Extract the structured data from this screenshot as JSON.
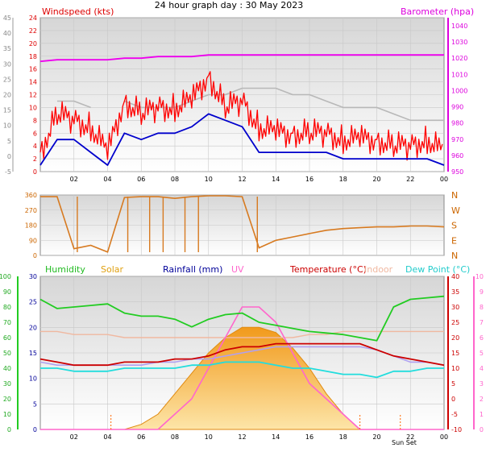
{
  "title": "24 hour graph day : 30 May 2023",
  "time_labels": [
    "02",
    "04",
    "06",
    "08",
    "10",
    "12",
    "14",
    "16",
    "18",
    "20",
    "22",
    "00"
  ],
  "sun_label": "Sun Set",
  "colors": {
    "wind_speed": "#ff0000",
    "wind_gust_avg": "#0000cc",
    "wind_gray": "#b8b8b8",
    "barometer": "#ee00ee",
    "wind_dir": "#d77a20",
    "humidity": "#22cc22",
    "solar": "#f6a623",
    "rain": "#000099",
    "uv": "#ff66cc",
    "temperature": "#cc0000",
    "indoor": "#f0b8a0",
    "dewpoint": "#22dddd",
    "dewpoint_lilac": "#b0a0f0"
  },
  "chart_data": [
    {
      "type": "line",
      "panel": "wind_pressure",
      "left_axis_title": "Windspeed (kts)",
      "right_axis_title": "Barometer (hpa)",
      "left_ticks": [
        "24",
        "22",
        "20",
        "18",
        "16",
        "14",
        "12",
        "10",
        "8",
        "6",
        "4",
        "2",
        "0"
      ],
      "right_ticks": [
        "1040",
        "1030",
        "1020",
        "1010",
        "1000",
        "990",
        "980",
        "970",
        "960",
        "950"
      ],
      "outer_left_ticks": [
        "45",
        "40",
        "35",
        "30",
        "25",
        "20",
        "15",
        "10",
        "5",
        "0",
        "-5"
      ],
      "x_hours": [
        0,
        1,
        2,
        3,
        4,
        5,
        6,
        7,
        8,
        9,
        10,
        11,
        12,
        13,
        14,
        15,
        16,
        17,
        18,
        19,
        20,
        21,
        22,
        23,
        24
      ],
      "series": [
        {
          "key": "wind_speed",
          "values": [
            3,
            9,
            8,
            7,
            3,
            11,
            9,
            10,
            10,
            11,
            15,
            10,
            11,
            7,
            6,
            6,
            6,
            6,
            5,
            5,
            5,
            4,
            4,
            5,
            3
          ]
        },
        {
          "key": "wind_avg",
          "values": [
            1,
            5,
            5,
            3,
            1,
            6,
            5,
            6,
            6,
            7,
            9,
            8,
            7,
            3,
            3,
            3,
            3,
            3,
            2,
            2,
            2,
            2,
            2,
            2,
            1
          ]
        },
        {
          "key": "wind_gray",
          "values": [
            null,
            11,
            11,
            10,
            null,
            11,
            10,
            10,
            10,
            11,
            12,
            12,
            13,
            13,
            13,
            12,
            12,
            11,
            10,
            10,
            10,
            9,
            8,
            8,
            8
          ]
        },
        {
          "key": "barometer",
          "values": [
            1018,
            1019,
            1019,
            1019,
            1019,
            1020,
            1020,
            1021,
            1021,
            1021,
            1022,
            1022,
            1022,
            1022,
            1022,
            1022,
            1022,
            1022,
            1022,
            1022,
            1022,
            1022,
            1022,
            1022,
            1022
          ]
        }
      ]
    },
    {
      "type": "line",
      "panel": "wind_direction",
      "left_ticks": [
        "360",
        "270",
        "180",
        "90",
        "0"
      ],
      "right_ticks": [
        "N",
        "W",
        "S",
        "E",
        "N"
      ],
      "x_hours": [
        0,
        1,
        2,
        3,
        4,
        5,
        6,
        7,
        8,
        9,
        10,
        11,
        12,
        13,
        14,
        15,
        16,
        17,
        18,
        19,
        20,
        21,
        22,
        23,
        24
      ],
      "series": [
        {
          "key": "wind_dir",
          "values": [
            350,
            350,
            40,
            60,
            20,
            345,
            350,
            350,
            340,
            350,
            355,
            355,
            350,
            45,
            90,
            110,
            130,
            150,
            160,
            165,
            170,
            170,
            175,
            175,
            170
          ]
        }
      ]
    },
    {
      "type": "mixed",
      "panel": "environment",
      "legend": [
        "Humidity",
        "Solar",
        "Rainfall (mm)",
        "UV",
        "Temperature (°C)",
        "Indoor",
        "Dew Point (°C)"
      ],
      "outer_left_ticks": [
        "100",
        "90",
        "80",
        "70",
        "60",
        "50",
        "40",
        "30",
        "20",
        "10",
        "0"
      ],
      "left_ticks": [
        "30",
        "25",
        "20",
        "15",
        "10",
        "5",
        "0"
      ],
      "right_ticks": [
        "40",
        "35",
        "30",
        "25",
        "20",
        "15",
        "10",
        "5",
        "0",
        "-5",
        "-10"
      ],
      "outer_right_ticks": [
        "10",
        "9",
        "8",
        "7",
        "6",
        "5",
        "4",
        "3",
        "2",
        "1",
        "0"
      ],
      "x_hours": [
        0,
        1,
        2,
        3,
        4,
        5,
        6,
        7,
        8,
        9,
        10,
        11,
        12,
        13,
        14,
        15,
        16,
        17,
        18,
        19,
        20,
        21,
        22,
        23,
        24
      ],
      "series": [
        {
          "key": "humidity",
          "unit": "%",
          "values": [
            85,
            79,
            80,
            81,
            82,
            76,
            74,
            74,
            72,
            67,
            72,
            75,
            76,
            70,
            68,
            66,
            64,
            63,
            62,
            60,
            58,
            80,
            85,
            86,
            87
          ]
        },
        {
          "key": "temperature",
          "unit": "°C",
          "values": [
            13,
            12,
            11,
            11,
            11,
            12,
            12,
            12,
            13,
            13,
            14,
            16,
            17,
            17,
            18,
            18,
            18,
            18,
            18,
            18,
            16,
            14,
            13,
            12,
            11
          ]
        },
        {
          "key": "dewpoint",
          "unit": "°C",
          "values": [
            10,
            10,
            9,
            9,
            9,
            10,
            10,
            10,
            10,
            11,
            11,
            12,
            12,
            12,
            11,
            10,
            10,
            9,
            8,
            8,
            7,
            9,
            9,
            10,
            10
          ]
        },
        {
          "key": "indoor",
          "unit": "°C",
          "values": [
            22,
            22,
            21,
            21,
            21,
            20,
            20,
            20,
            20,
            20,
            20,
            20,
            20,
            20,
            20,
            20,
            21,
            21,
            22,
            22,
            22,
            22,
            22,
            22,
            22
          ]
        },
        {
          "key": "lilac",
          "unit": "°C",
          "values": [
            12,
            11,
            11,
            11,
            11,
            11,
            11,
            12,
            12,
            13,
            13,
            14,
            15,
            16,
            17,
            17,
            17,
            17,
            17,
            17,
            16,
            14,
            12,
            12,
            11
          ]
        },
        {
          "key": "solar",
          "values": [
            0,
            0,
            0,
            0,
            0,
            0,
            1,
            3,
            7,
            11,
            15,
            18,
            20,
            20,
            19,
            16,
            12,
            7,
            3,
            0,
            0,
            0,
            0,
            0,
            0
          ]
        },
        {
          "key": "uv",
          "values": [
            0,
            0,
            0,
            0,
            0,
            0,
            0,
            0,
            1,
            2,
            4,
            6,
            8,
            8,
            7,
            5,
            3,
            2,
            1,
            0,
            0,
            0,
            0,
            0,
            0
          ]
        }
      ]
    }
  ]
}
